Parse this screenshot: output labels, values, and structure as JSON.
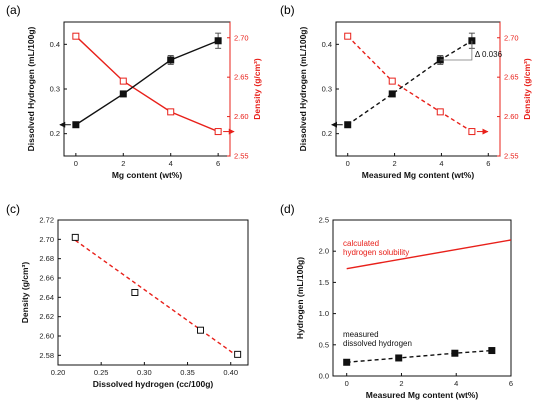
{
  "colors": {
    "black": "#111111",
    "red": "#e8201a"
  },
  "chart_data": [
    {
      "panel_label": "(a)",
      "type": "line",
      "xlabel": "Mg content (wt%)",
      "ylabel": "Dissolved Hydrogen (mL/100g)",
      "y2label": "Density (g/cm³)",
      "xlim": [
        -0.5,
        6.5
      ],
      "ylim": [
        0.15,
        0.45
      ],
      "y2lim": [
        2.55,
        2.72
      ],
      "xticks": [
        "0",
        "2",
        "4",
        "6"
      ],
      "yticks": [
        "0.2",
        "0.3",
        "0.4"
      ],
      "y2ticks": [
        "2.55",
        "2.60",
        "2.65",
        "2.70"
      ],
      "series": [
        {
          "axis": "left",
          "marker": "filled-square",
          "line": "solid",
          "color": "#111111",
          "x": [
            0,
            2,
            4,
            6
          ],
          "y": [
            0.22,
            0.289,
            0.365,
            0.408
          ],
          "err": [
            0,
            0.005,
            0.01,
            0.017
          ],
          "arrow": "left"
        },
        {
          "axis": "right",
          "marker": "open-square",
          "line": "solid",
          "color": "#e8201a",
          "x": [
            0,
            2,
            4,
            6
          ],
          "y": [
            2.702,
            2.645,
            2.606,
            2.581
          ],
          "arrow": "right"
        }
      ]
    },
    {
      "panel_label": "(b)",
      "type": "line",
      "xlabel": "Measured Mg content (wt%)",
      "ylabel": "Dissolved Hydrogen (mL/100g)",
      "y2label": "Density (g/cm³)",
      "xlim": [
        -0.5,
        6.5
      ],
      "ylim": [
        0.15,
        0.45
      ],
      "y2lim": [
        2.55,
        2.72
      ],
      "xticks": [
        "0",
        "2",
        "4",
        "6"
      ],
      "yticks": [
        "0.2",
        "0.3",
        "0.4"
      ],
      "y2ticks": [
        "2.55",
        "2.60",
        "2.65",
        "2.70"
      ],
      "annotation": "Δ 0.036",
      "series": [
        {
          "axis": "left",
          "marker": "filled-square",
          "line": "dashed",
          "color": "#111111",
          "x": [
            0,
            1.9,
            3.95,
            5.3
          ],
          "y": [
            0.22,
            0.289,
            0.365,
            0.408
          ],
          "err": [
            0,
            0.005,
            0.01,
            0.017
          ],
          "arrow": "left"
        },
        {
          "axis": "right",
          "marker": "open-square",
          "line": "dashed",
          "color": "#e8201a",
          "x": [
            0,
            1.9,
            3.95,
            5.3
          ],
          "y": [
            2.702,
            2.645,
            2.606,
            2.581
          ],
          "arrow": "right"
        }
      ]
    },
    {
      "panel_label": "(c)",
      "type": "scatter",
      "xlabel": "Dissolved hydrogen (cc/100g)",
      "ylabel": "Density (g/cm³)",
      "xlim": [
        0.2,
        0.42
      ],
      "ylim": [
        2.57,
        2.72
      ],
      "xticks": [
        "0.20",
        "0.25",
        "0.30",
        "0.35",
        "0.40"
      ],
      "yticks": [
        "2.58",
        "2.60",
        "2.62",
        "2.64",
        "2.66",
        "2.68",
        "2.70",
        "2.72"
      ],
      "points": {
        "x": [
          0.22,
          0.289,
          0.365,
          0.408
        ],
        "y": [
          2.702,
          2.645,
          2.606,
          2.581
        ]
      },
      "fit": {
        "x": [
          0.22,
          0.408
        ],
        "y": [
          2.699,
          2.579
        ],
        "color": "#e8201a",
        "line": "dashed"
      }
    },
    {
      "panel_label": "(d)",
      "type": "line",
      "xlabel": "Measured Mg content (wt%)",
      "ylabel": "Hydrogen (mL/100g)",
      "xlim": [
        -0.5,
        6
      ],
      "ylim": [
        0,
        2.5
      ],
      "xticks": [
        "0",
        "2",
        "4",
        "6"
      ],
      "yticks": [
        "0.0",
        "0.5",
        "1.0",
        "1.5",
        "2.0",
        "2.5"
      ],
      "series": [
        {
          "name": "calculated hydrogen solubility",
          "legend": [
            "calculated",
            "hydrogen solubility"
          ],
          "color": "#e8201a",
          "line": "solid",
          "x": [
            0,
            6
          ],
          "y": [
            1.72,
            2.18
          ]
        },
        {
          "name": "measured dissolved hydrogen",
          "legend": [
            "measured",
            "dissolved hydrogen"
          ],
          "color": "#111111",
          "line": "dashed",
          "marker": "filled-square",
          "x": [
            0,
            1.9,
            3.95,
            5.3
          ],
          "y": [
            0.22,
            0.289,
            0.365,
            0.408
          ]
        }
      ]
    }
  ]
}
